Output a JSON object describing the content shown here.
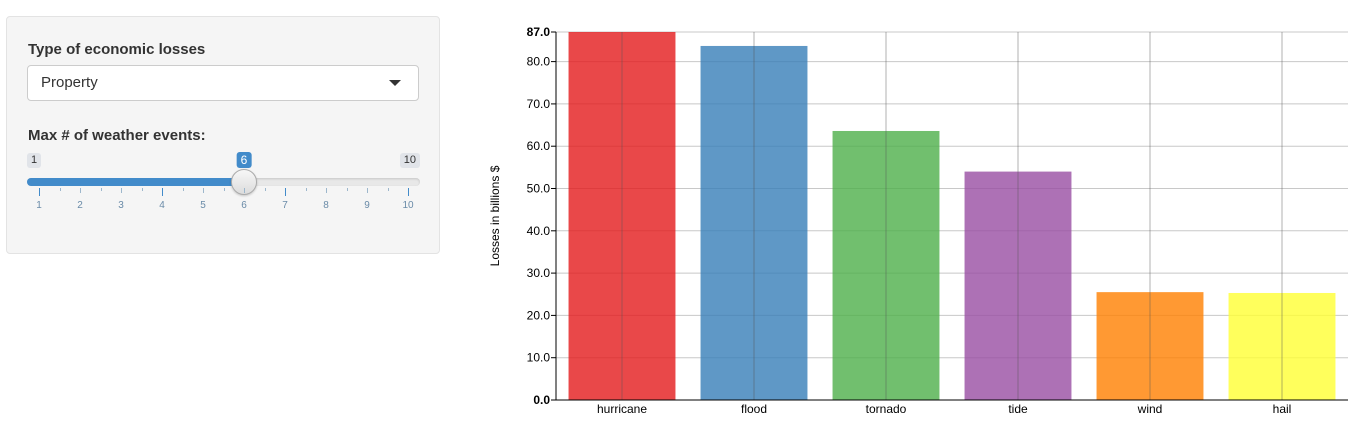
{
  "controls": {
    "loss_type": {
      "label": "Type of economic losses",
      "selected": "Property"
    },
    "max_events": {
      "label": "Max # of weather events:",
      "min": 1,
      "max": 10,
      "value": 6,
      "tick_labels": [
        "1",
        "2",
        "3",
        "4",
        "5",
        "6",
        "7",
        "8",
        "9",
        "10"
      ]
    }
  },
  "chart_data": {
    "type": "bar",
    "categories": [
      "hurricane",
      "flood",
      "tornado",
      "tide",
      "wind",
      "hail"
    ],
    "values": [
      87.0,
      83.7,
      63.6,
      54.0,
      25.5,
      25.3
    ],
    "colors": [
      "#e41a1c",
      "#377eb8",
      "#4daf4a",
      "#984ea3",
      "#ff7f00",
      "#ffff33"
    ],
    "ylabel": "Losses in billions $",
    "xlabel": "",
    "ylim": [
      0,
      87.0
    ],
    "y_ticks": [
      0,
      10,
      20,
      30,
      40,
      50,
      60,
      70,
      80,
      87
    ],
    "y_tick_labels": [
      "0.0",
      "10.0",
      "20.0",
      "30.0",
      "40.0",
      "50.0",
      "60.0",
      "70.0",
      "80.0",
      "87.0"
    ],
    "grid": true,
    "legend": "none"
  }
}
